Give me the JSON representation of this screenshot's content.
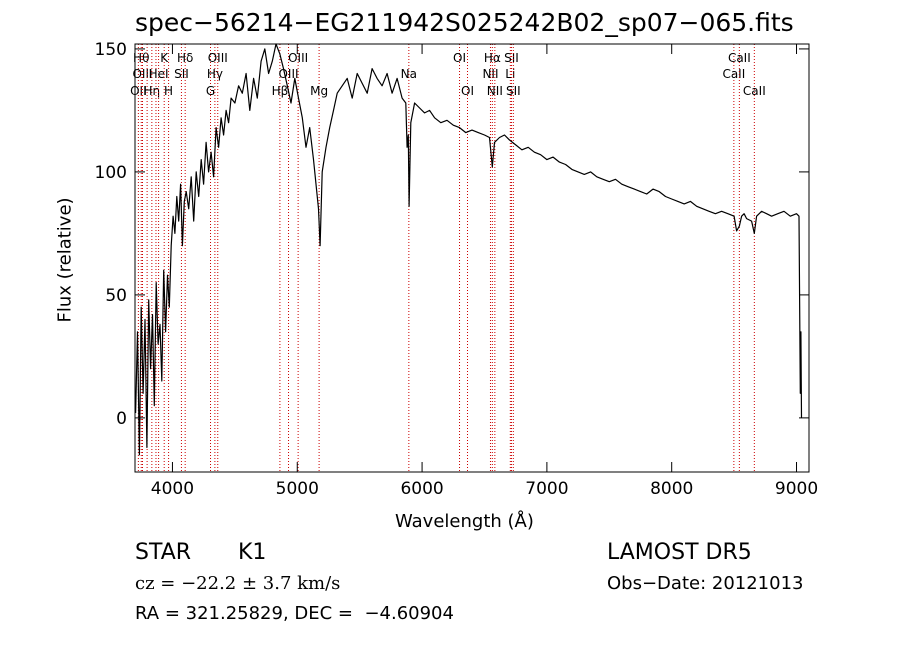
{
  "info": {
    "obj_class": "STAR",
    "subclass": "K1",
    "survey": "LAMOST DR5",
    "cz": "cz = −22.2 ± 3.7 km/s",
    "obs_date": "Obs−Date: 20121013",
    "coords": "RA = 321.25829, DEC =  −4.60904"
  },
  "chart_data": {
    "type": "line",
    "title": "spec−56214−EG211942S025242B02_sp07−065.fits",
    "xlabel": "Wavelength (Å)",
    "ylabel": "Flux (relative)",
    "xlim": [
      3700,
      9100
    ],
    "ylim": [
      -22,
      152
    ],
    "xticks": [
      4000,
      5000,
      6000,
      7000,
      8000,
      9000
    ],
    "yticks": [
      0,
      50,
      100,
      150
    ],
    "grid": false,
    "line_color": "#000000",
    "marker_color": "#cc0000",
    "series": [
      {
        "x": [
          3705,
          3720,
          3735,
          3750,
          3765,
          3780,
          3795,
          3810,
          3825,
          3840,
          3855,
          3870,
          3885,
          3900,
          3915,
          3930,
          3945,
          3960,
          3975,
          3990,
          4005,
          4020,
          4035,
          4050,
          4065,
          4080,
          4095,
          4110,
          4130,
          4150,
          4170,
          4190,
          4210,
          4230,
          4250,
          4270,
          4290,
          4310,
          4330,
          4350,
          4370,
          4390,
          4410,
          4430,
          4450,
          4470,
          4500,
          4530,
          4560,
          4590,
          4620,
          4650,
          4680,
          4710,
          4740,
          4770,
          4800,
          4830,
          4860,
          4890,
          4920,
          4950,
          4980,
          5010,
          5040,
          5070,
          5100,
          5130,
          5150,
          5170,
          5183,
          5200,
          5230,
          5260,
          5290,
          5320,
          5360,
          5400,
          5440,
          5480,
          5520,
          5560,
          5600,
          5640,
          5680,
          5720,
          5760,
          5800,
          5840,
          5870,
          5880,
          5890,
          5896,
          5910,
          5940,
          5980,
          6020,
          6060,
          6100,
          6150,
          6200,
          6250,
          6300,
          6350,
          6400,
          6450,
          6500,
          6540,
          6563,
          6580,
          6620,
          6660,
          6700,
          6750,
          6800,
          6850,
          6900,
          6950,
          7000,
          7050,
          7100,
          7150,
          7200,
          7250,
          7300,
          7350,
          7400,
          7450,
          7500,
          7550,
          7600,
          7650,
          7700,
          7750,
          7800,
          7850,
          7900,
          7950,
          8000,
          8050,
          8100,
          8150,
          8200,
          8250,
          8300,
          8350,
          8400,
          8450,
          8500,
          8520,
          8542,
          8560,
          8580,
          8600,
          8640,
          8662,
          8680,
          8720,
          8760,
          8800,
          8850,
          8900,
          8950,
          9000,
          9020,
          9030,
          9035,
          9040
        ],
        "y": [
          2,
          35,
          -15,
          45,
          10,
          40,
          -12,
          48,
          20,
          42,
          5,
          55,
          30,
          38,
          15,
          60,
          35,
          58,
          45,
          70,
          82,
          75,
          90,
          80,
          95,
          70,
          88,
          92,
          85,
          98,
          80,
          100,
          90,
          105,
          95,
          112,
          100,
          108,
          98,
          118,
          110,
          122,
          115,
          125,
          120,
          130,
          128,
          135,
          132,
          140,
          125,
          138,
          130,
          145,
          150,
          140,
          145,
          152,
          148,
          142,
          135,
          128,
          138,
          130,
          122,
          110,
          118,
          105,
          95,
          85,
          70,
          100,
          110,
          118,
          125,
          132,
          135,
          138,
          130,
          140,
          136,
          132,
          142,
          138,
          135,
          140,
          132,
          138,
          130,
          128,
          110,
          115,
          86,
          120,
          128,
          126,
          124,
          125,
          122,
          120,
          121,
          119,
          118,
          116,
          117,
          116,
          115,
          114,
          102,
          112,
          114,
          115,
          113,
          111,
          109,
          110,
          108,
          107,
          105,
          106,
          104,
          103,
          101,
          100,
          99,
          100,
          98,
          97,
          96,
          97,
          95,
          94,
          93,
          92,
          91,
          93,
          92,
          90,
          89,
          88,
          87,
          88,
          86,
          85,
          84,
          83,
          84,
          83,
          82,
          76,
          78,
          82,
          83,
          81,
          80,
          75,
          82,
          84,
          83,
          82,
          83,
          84,
          82,
          83,
          82,
          10,
          35,
          0
        ]
      }
    ],
    "line_markers": [
      {
        "wl": 3727,
        "label": "OII",
        "row": 3
      },
      {
        "wl": 3750,
        "label": "Hθ",
        "row": 1
      },
      {
        "wl": 3760,
        "label": "OIII",
        "row": 2
      },
      {
        "wl": 3797,
        "label": "",
        "row": 0
      },
      {
        "wl": 3835,
        "label": "Hη",
        "row": 3
      },
      {
        "wl": 3868,
        "label": "",
        "row": 0
      },
      {
        "wl": 3889,
        "label": "HeI",
        "row": 2
      },
      {
        "wl": 3934,
        "label": "K",
        "row": 1
      },
      {
        "wl": 3969,
        "label": "H",
        "row": 3
      },
      {
        "wl": 4072,
        "label": "SII",
        "row": 2
      },
      {
        "wl": 4102,
        "label": "Hδ",
        "row": 1
      },
      {
        "wl": 4305,
        "label": "G",
        "row": 3
      },
      {
        "wl": 4340,
        "label": "Hγ",
        "row": 2
      },
      {
        "wl": 4363,
        "label": "OIII",
        "row": 1
      },
      {
        "wl": 4861,
        "label": "Hβ",
        "row": 3
      },
      {
        "wl": 4930,
        "label": "OIII",
        "row": 2
      },
      {
        "wl": 5007,
        "label": "OIII",
        "row": 1
      },
      {
        "wl": 5175,
        "label": "Mg",
        "row": 3
      },
      {
        "wl": 5894,
        "label": "Na",
        "row": 2
      },
      {
        "wl": 6300,
        "label": "OI",
        "row": 1
      },
      {
        "wl": 6364,
        "label": "OI",
        "row": 3
      },
      {
        "wl": 6548,
        "label": "NII",
        "row": 2
      },
      {
        "wl": 6563,
        "label": "Hα",
        "row": 1
      },
      {
        "wl": 6583,
        "label": "NII",
        "row": 3
      },
      {
        "wl": 6707,
        "label": "Li",
        "row": 2
      },
      {
        "wl": 6716,
        "label": "SII",
        "row": 1
      },
      {
        "wl": 6731,
        "label": "SII",
        "row": 3
      },
      {
        "wl": 8498,
        "label": "CaII",
        "row": 2
      },
      {
        "wl": 8542,
        "label": "CaII",
        "row": 1
      },
      {
        "wl": 8662,
        "label": "CaII",
        "row": 3
      }
    ]
  }
}
